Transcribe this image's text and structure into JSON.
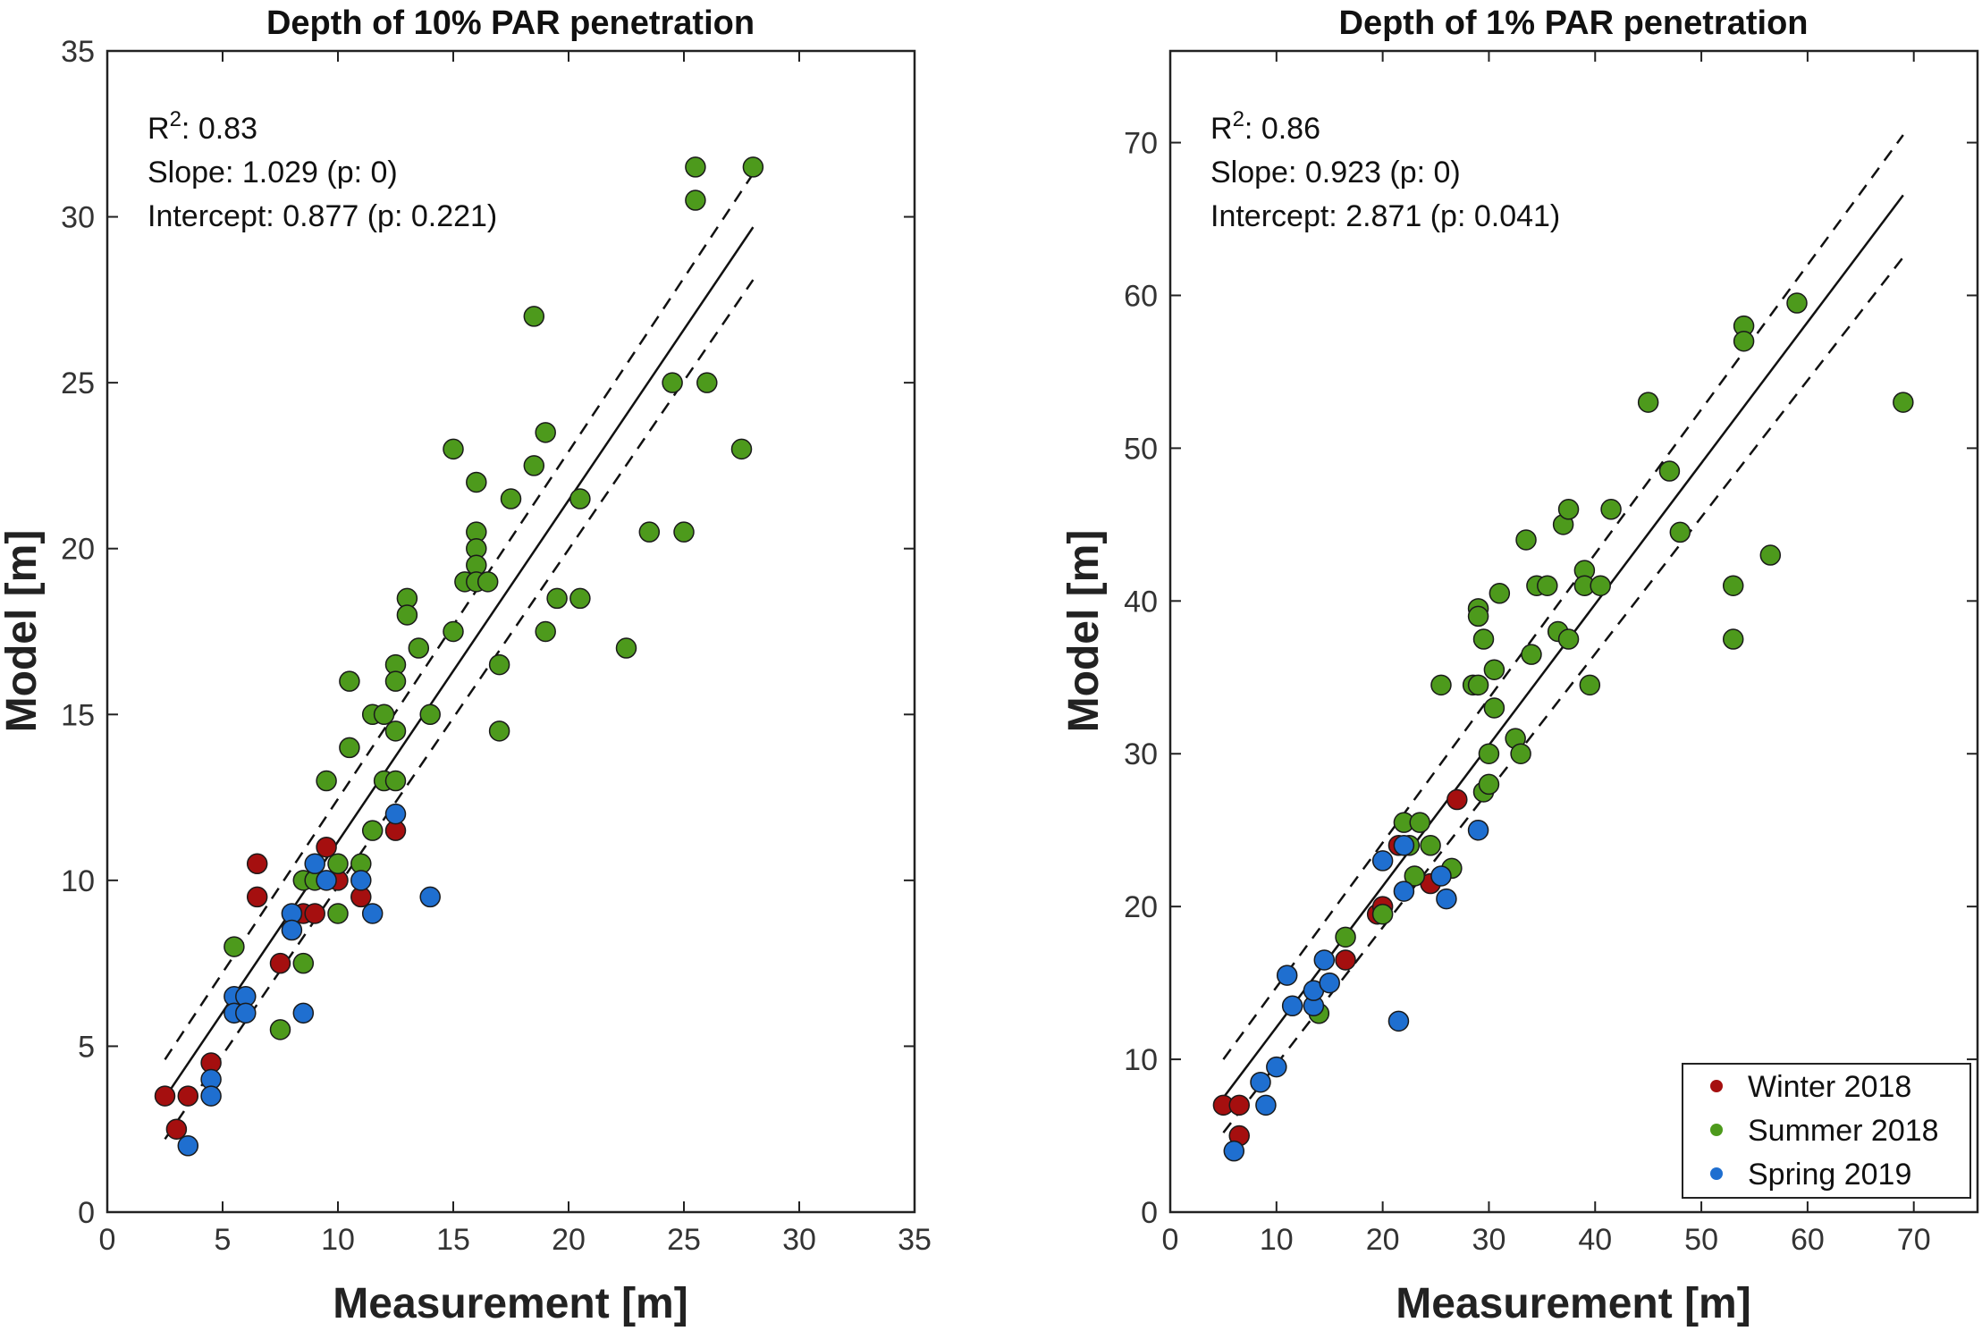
{
  "colors": {
    "Winter 2018": "#a50f0f",
    "Summer 2018": "#4d9a1c",
    "Spring 2019": "#1f6fd0"
  },
  "legend": {
    "location": "bottom-right of right panel",
    "entries": [
      "Winter 2018",
      "Summer 2018",
      "Spring 2019"
    ]
  },
  "chart_data": [
    {
      "type": "scatter",
      "title": "Depth of 10% PAR penetration",
      "xlabel": "Measurement [m]",
      "ylabel": "Model [m]",
      "xlim": [
        0,
        35
      ],
      "ylim": [
        0,
        35
      ],
      "xticks": [
        0,
        5,
        10,
        15,
        20,
        25,
        30,
        35
      ],
      "yticks": [
        0,
        5,
        10,
        15,
        20,
        25,
        30,
        35
      ],
      "stats": {
        "r2_label": "R",
        "r2_sup": "2",
        "r2_value": ": 0.83",
        "slope": "Slope: 1.029  (p: 0)",
        "intercept": "Intercept: 0.877  (p: 0.221)"
      },
      "fit": {
        "x0": 2.5,
        "x1": 28,
        "slope": 1.029,
        "intercept": 0.877
      },
      "ci_upper": [
        [
          2.5,
          4.6
        ],
        [
          28,
          31.3
        ]
      ],
      "ci_lower": [
        [
          2.5,
          2.2
        ],
        [
          28,
          28.1
        ]
      ],
      "series": [
        {
          "name": "Winter 2018",
          "points": [
            [
              2.5,
              3.5
            ],
            [
              3,
              2.5
            ],
            [
              3.5,
              3.5
            ],
            [
              4.5,
              4.5
            ],
            [
              6.5,
              10.5
            ],
            [
              6.5,
              9.5
            ],
            [
              7.5,
              7.5
            ],
            [
              8.5,
              9
            ],
            [
              9,
              9
            ],
            [
              9.5,
              11
            ],
            [
              10,
              10
            ],
            [
              11,
              9.5
            ],
            [
              12.5,
              11.5
            ]
          ]
        },
        {
          "name": "Summer 2018",
          "points": [
            [
              5.5,
              8
            ],
            [
              7.5,
              5.5
            ],
            [
              8.5,
              7.5
            ],
            [
              8.5,
              10
            ],
            [
              9,
              10
            ],
            [
              9.5,
              13
            ],
            [
              10,
              10.5
            ],
            [
              10,
              9
            ],
            [
              10.5,
              16
            ],
            [
              10.5,
              14
            ],
            [
              11,
              10.5
            ],
            [
              11.5,
              15
            ],
            [
              11.5,
              11.5
            ],
            [
              12,
              15
            ],
            [
              12,
              13
            ],
            [
              12.5,
              16.5
            ],
            [
              12.5,
              16
            ],
            [
              12.5,
              14.5
            ],
            [
              12.5,
              13
            ],
            [
              13,
              18.5
            ],
            [
              13,
              18
            ],
            [
              13.5,
              17
            ],
            [
              14,
              15
            ],
            [
              15,
              23
            ],
            [
              15,
              17.5
            ],
            [
              15.5,
              19
            ],
            [
              16,
              22
            ],
            [
              16,
              20.5
            ],
            [
              16,
              20
            ],
            [
              16,
              19.5
            ],
            [
              16,
              19
            ],
            [
              16.5,
              19
            ],
            [
              17,
              16.5
            ],
            [
              17,
              14.5
            ],
            [
              17.5,
              21.5
            ],
            [
              18.5,
              27
            ],
            [
              18.5,
              22.5
            ],
            [
              19,
              23.5
            ],
            [
              19,
              17.5
            ],
            [
              19.5,
              18.5
            ],
            [
              20.5,
              21.5
            ],
            [
              20.5,
              18.5
            ],
            [
              22.5,
              17
            ],
            [
              23.5,
              20.5
            ],
            [
              24.5,
              25
            ],
            [
              25,
              20.5
            ],
            [
              25.5,
              31.5
            ],
            [
              25.5,
              30.5
            ],
            [
              26,
              25
            ],
            [
              27.5,
              23
            ],
            [
              28,
              31.5
            ]
          ]
        },
        {
          "name": "Spring 2019",
          "points": [
            [
              3.5,
              2
            ],
            [
              4.5,
              4
            ],
            [
              4.5,
              3.5
            ],
            [
              5.5,
              6.5
            ],
            [
              5.5,
              6
            ],
            [
              6,
              6.5
            ],
            [
              6,
              6
            ],
            [
              8,
              9
            ],
            [
              8,
              8.5
            ],
            [
              8.5,
              6
            ],
            [
              9,
              10.5
            ],
            [
              9.5,
              10
            ],
            [
              11,
              10
            ],
            [
              11.5,
              9
            ],
            [
              12.5,
              12
            ],
            [
              14,
              9.5
            ]
          ]
        }
      ]
    },
    {
      "type": "scatter",
      "title": "Depth of 1% PAR penetration",
      "xlabel": "Measurement [m]",
      "ylabel": "Model [m]",
      "xlim": [
        0,
        76
      ],
      "ylim": [
        0,
        76
      ],
      "xticks": [
        0,
        10,
        20,
        30,
        40,
        50,
        60,
        70
      ],
      "yticks": [
        0,
        10,
        20,
        30,
        40,
        50,
        60,
        70
      ],
      "stats": {
        "r2_label": "R",
        "r2_sup": "2",
        "r2_value": ": 0.86",
        "slope": "Slope: 0.923  (p: 0)",
        "intercept": "Intercept: 2.871  (p: 0.041)"
      },
      "fit": {
        "x0": 5,
        "x1": 69,
        "slope": 0.923,
        "intercept": 2.871
      },
      "ci_upper": [
        [
          5,
          10.0
        ],
        [
          69,
          70.5
        ]
      ],
      "ci_lower": [
        [
          5,
          5.2
        ],
        [
          69,
          62.5
        ]
      ],
      "series": [
        {
          "name": "Winter 2018",
          "points": [
            [
              5,
              7
            ],
            [
              6.5,
              7
            ],
            [
              6.5,
              5
            ],
            [
              16.5,
              16.5
            ],
            [
              19.5,
              19.5
            ],
            [
              20,
              20
            ],
            [
              21.5,
              24
            ],
            [
              24.5,
              21.5
            ],
            [
              27,
              27
            ]
          ]
        },
        {
          "name": "Summer 2018",
          "points": [
            [
              14,
              13
            ],
            [
              16.5,
              18
            ],
            [
              20,
              19.5
            ],
            [
              22,
              25.5
            ],
            [
              22.5,
              24
            ],
            [
              23,
              22
            ],
            [
              23.5,
              25.5
            ],
            [
              24.5,
              24
            ],
            [
              25.5,
              34.5
            ],
            [
              26.5,
              22.5
            ],
            [
              28.5,
              34.5
            ],
            [
              29,
              39.5
            ],
            [
              29,
              39
            ],
            [
              29,
              34.5
            ],
            [
              29.5,
              37.5
            ],
            [
              29.5,
              27.5
            ],
            [
              30,
              30
            ],
            [
              30,
              28
            ],
            [
              30.5,
              35.5
            ],
            [
              30.5,
              33
            ],
            [
              31,
              40.5
            ],
            [
              32.5,
              31
            ],
            [
              33,
              30
            ],
            [
              33.5,
              44
            ],
            [
              34,
              36.5
            ],
            [
              34.5,
              41
            ],
            [
              35.5,
              41
            ],
            [
              36.5,
              38
            ],
            [
              37,
              45
            ],
            [
              37.5,
              46
            ],
            [
              37.5,
              37.5
            ],
            [
              39,
              42
            ],
            [
              39,
              41
            ],
            [
              39.5,
              34.5
            ],
            [
              40.5,
              41
            ],
            [
              41.5,
              46
            ],
            [
              45,
              53
            ],
            [
              47,
              48.5
            ],
            [
              48,
              44.5
            ],
            [
              53,
              41
            ],
            [
              53,
              37.5
            ],
            [
              54,
              58
            ],
            [
              54,
              57
            ],
            [
              56.5,
              43
            ],
            [
              59,
              59.5
            ],
            [
              69,
              53
            ]
          ]
        },
        {
          "name": "Spring 2019",
          "points": [
            [
              6,
              4
            ],
            [
              8.5,
              8.5
            ],
            [
              9,
              7
            ],
            [
              10,
              9.5
            ],
            [
              11,
              15.5
            ],
            [
              11.5,
              13.5
            ],
            [
              13.5,
              13.5
            ],
            [
              13.5,
              14.5
            ],
            [
              14.5,
              16.5
            ],
            [
              15,
              15
            ],
            [
              20,
              23
            ],
            [
              21.5,
              12.5
            ],
            [
              22,
              21
            ],
            [
              22,
              24
            ],
            [
              25.5,
              22
            ],
            [
              26,
              20.5
            ],
            [
              29,
              25
            ]
          ]
        }
      ]
    }
  ]
}
